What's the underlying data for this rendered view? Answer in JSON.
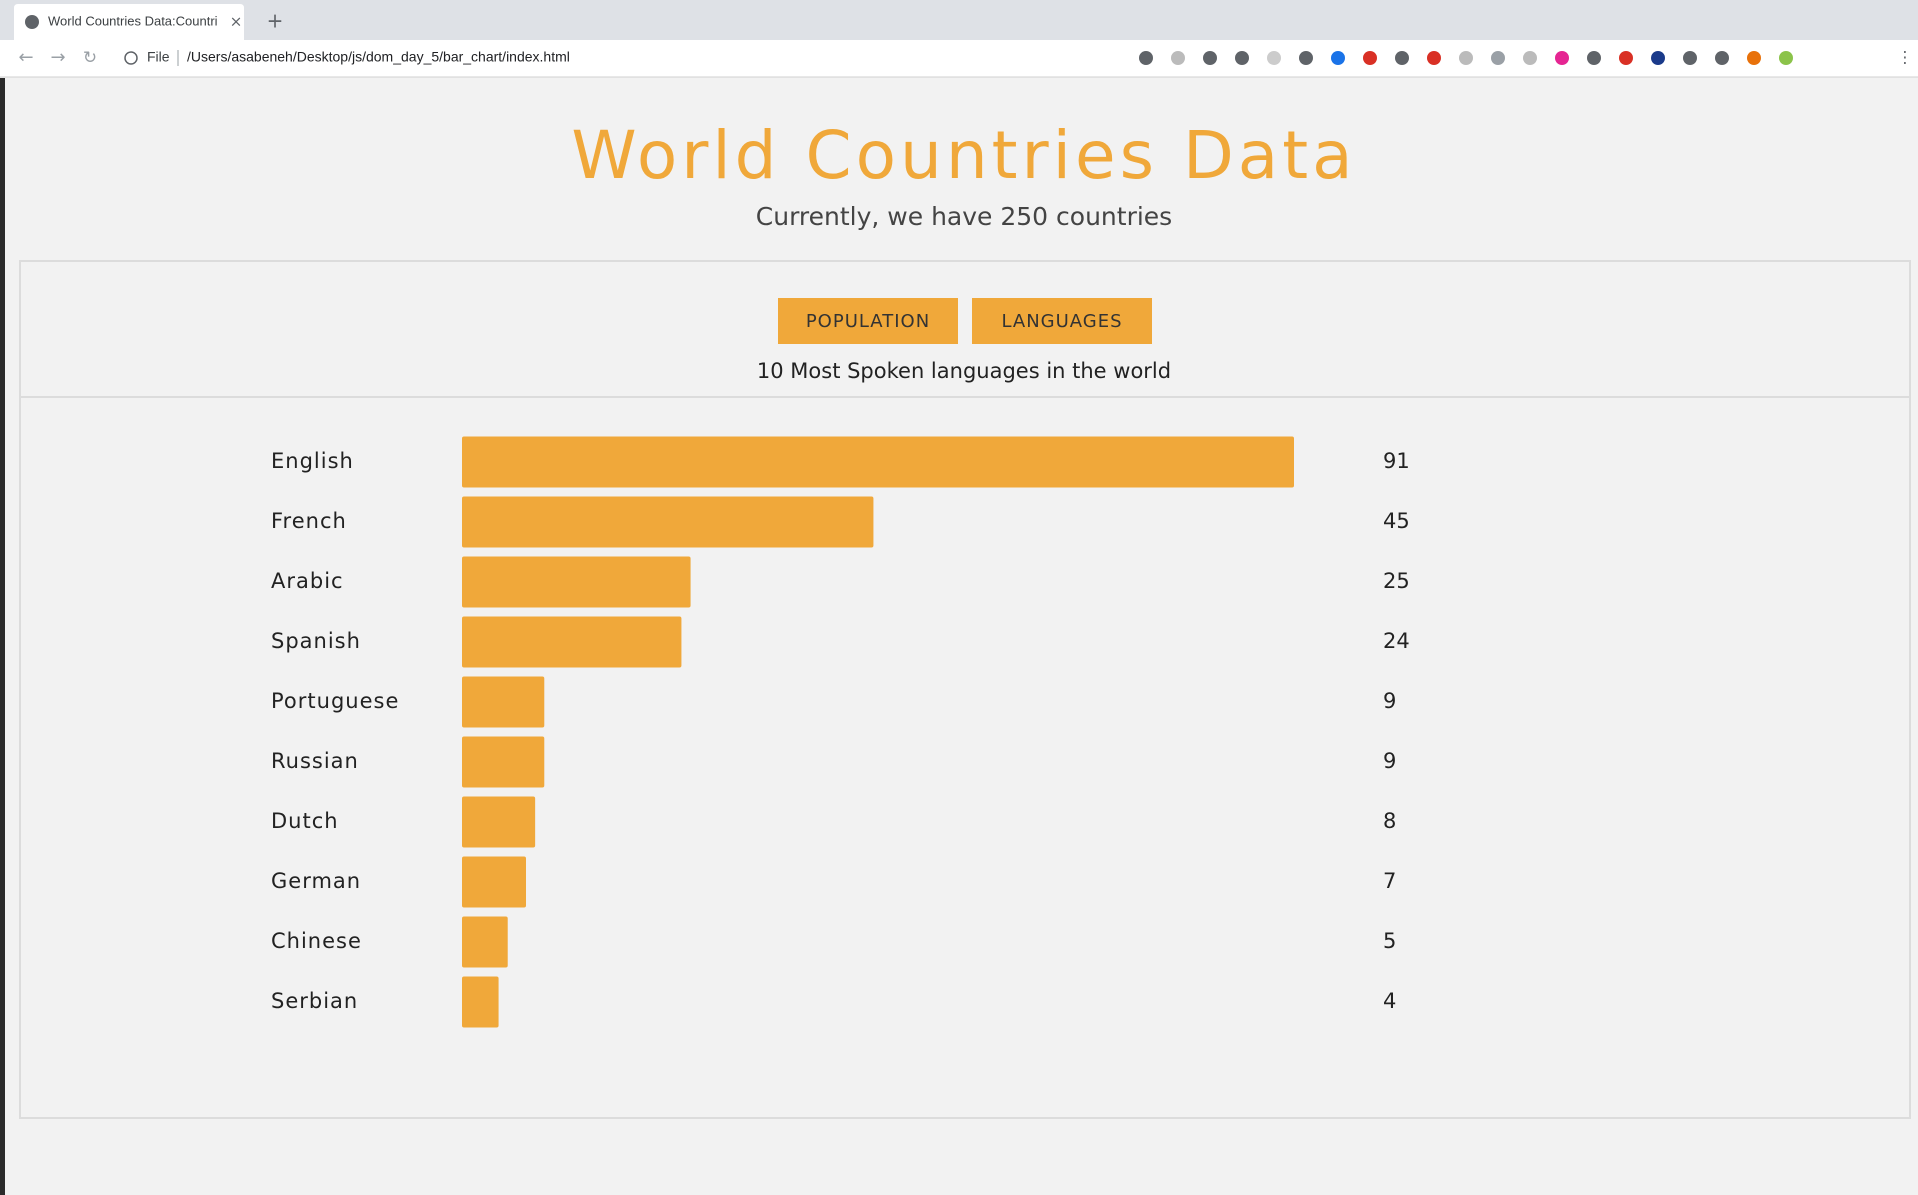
{
  "browser": {
    "tab_title": "World Countries Data:Countri",
    "url_scheme": "File",
    "url": "/Users/asabeneh/Desktop/js/dom_day_5/bar_chart/index.html"
  },
  "header": {
    "title": "World Countries Data",
    "subtitle": "Currently, we have 250 countries"
  },
  "buttons": [
    "POPULATION",
    "LANGUAGES"
  ],
  "chart_data": {
    "type": "bar",
    "orientation": "horizontal",
    "title": "10 Most Spoken languages in the world",
    "categories": [
      "English",
      "French",
      "Arabic",
      "Spanish",
      "Portuguese",
      "Russian",
      "Dutch",
      "German",
      "Chinese",
      "Serbian"
    ],
    "values": [
      91,
      45,
      25,
      24,
      9,
      9,
      8,
      7,
      5,
      4
    ],
    "color": "#f0a83a"
  }
}
